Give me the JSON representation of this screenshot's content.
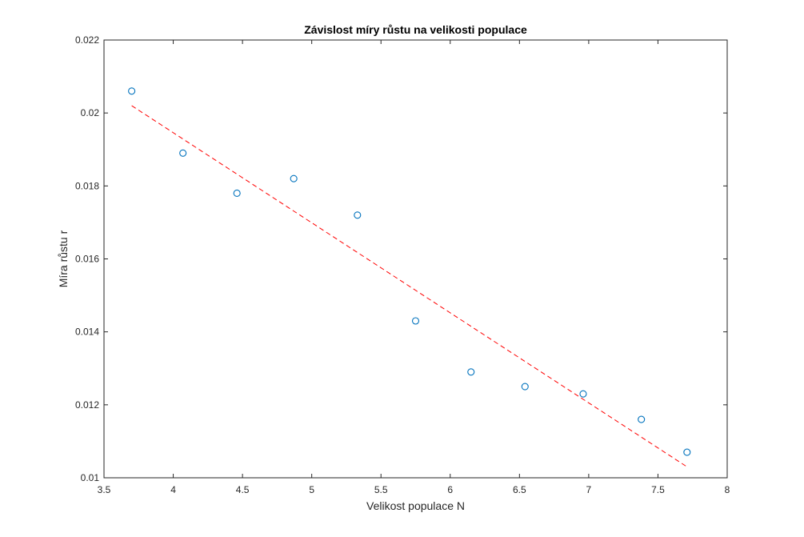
{
  "chart_data": {
    "type": "scatter",
    "title": "Závislost míry růstu na velikosti populace",
    "xlabel": "Velikost populace N",
    "ylabel": "Míra růstu r",
    "xlim": [
      3.5,
      8
    ],
    "ylim": [
      0.01,
      0.022
    ],
    "grid": false,
    "x_ticks": [
      "3.5",
      "4",
      "4.5",
      "5",
      "5.5",
      "6",
      "6.5",
      "7",
      "7.5",
      "8"
    ],
    "y_ticks": [
      "0.01",
      "0.012",
      "0.014",
      "0.016",
      "0.018",
      "0.02",
      "0.022"
    ],
    "series": [
      {
        "marker": "circle",
        "color": "#0072BD",
        "x": [
          3.7,
          4.07,
          4.46,
          4.87,
          5.33,
          5.75,
          6.15,
          6.54,
          6.96,
          7.38,
          7.71
        ],
        "y": [
          0.0206,
          0.0189,
          0.0178,
          0.0182,
          0.0172,
          0.0143,
          0.0129,
          0.0125,
          0.0123,
          0.0116,
          0.0107
        ]
      }
    ],
    "fit_line": {
      "style": "dashed",
      "color": "#FF0000",
      "x": [
        3.7,
        7.71
      ],
      "y": [
        0.0202,
        0.0103
      ]
    }
  }
}
